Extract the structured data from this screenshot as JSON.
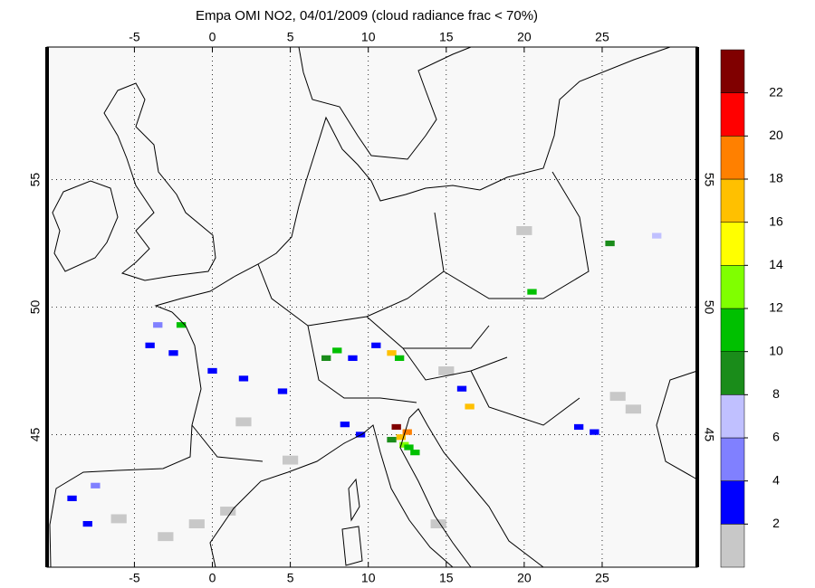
{
  "title": "Empa OMI NO2, 04/01/2009 (cloud radiance frac < 70%)",
  "map": {
    "xlim": [
      -10.6,
      31.1
    ],
    "ylim": [
      39.8,
      60.2
    ],
    "xticks": [
      -5,
      0,
      5,
      10,
      15,
      20,
      25
    ],
    "yticks": [
      45,
      50,
      55
    ],
    "grid": true
  },
  "colorbar": {
    "lim": [
      0,
      24
    ],
    "ticks": [
      2,
      4,
      6,
      8,
      10,
      12,
      14,
      16,
      18,
      20,
      22
    ],
    "colors": [
      "#c8c8c8",
      "#0000ff",
      "#8080ff",
      "#c0c0ff",
      "#1a8c1a",
      "#00c000",
      "#80ff00",
      "#ffff00",
      "#ffc000",
      "#ff8000",
      "#ff0000",
      "#800000"
    ]
  },
  "cells": {
    "lon": [
      12.3,
      12.1,
      12.6,
      11.8,
      12.5,
      11.5,
      13.0,
      7.3,
      8.0,
      11.5,
      12.0,
      10.5,
      9.0,
      -4,
      -2.5,
      0,
      2,
      4.5,
      -2,
      -3.5,
      -9,
      -8,
      -7.5,
      8.5,
      9.5,
      16.5,
      16,
      23.5,
      24.5,
      20.5,
      28.5,
      25.5,
      2,
      -1,
      26,
      27,
      20,
      15,
      5,
      1,
      -3,
      -6,
      14.5
    ],
    "lat": [
      44.6,
      44.9,
      44.5,
      45.3,
      45.1,
      44.8,
      44.3,
      48.0,
      48.3,
      48.2,
      48.0,
      48.5,
      48.0,
      48.5,
      48.2,
      47.5,
      47.2,
      46.7,
      49.3,
      49.3,
      42.5,
      41.5,
      43.0,
      45.4,
      45.0,
      46.1,
      46.8,
      45.3,
      45.1,
      50.6,
      52.8,
      52.5,
      45.5,
      41.5,
      46.5,
      46.0,
      53.0,
      47.5,
      44.0,
      42.0,
      41.0,
      41.7,
      41.5
    ],
    "values": [
      13,
      17,
      11,
      23,
      19,
      9,
      10,
      9,
      11,
      17,
      11,
      3,
      3,
      3,
      3,
      3,
      3,
      3,
      11,
      5,
      3,
      3,
      5,
      3,
      3,
      17,
      3,
      3,
      3,
      11,
      7,
      9,
      1,
      1,
      1,
      1,
      1,
      1,
      1,
      1,
      1,
      1,
      1
    ]
  }
}
